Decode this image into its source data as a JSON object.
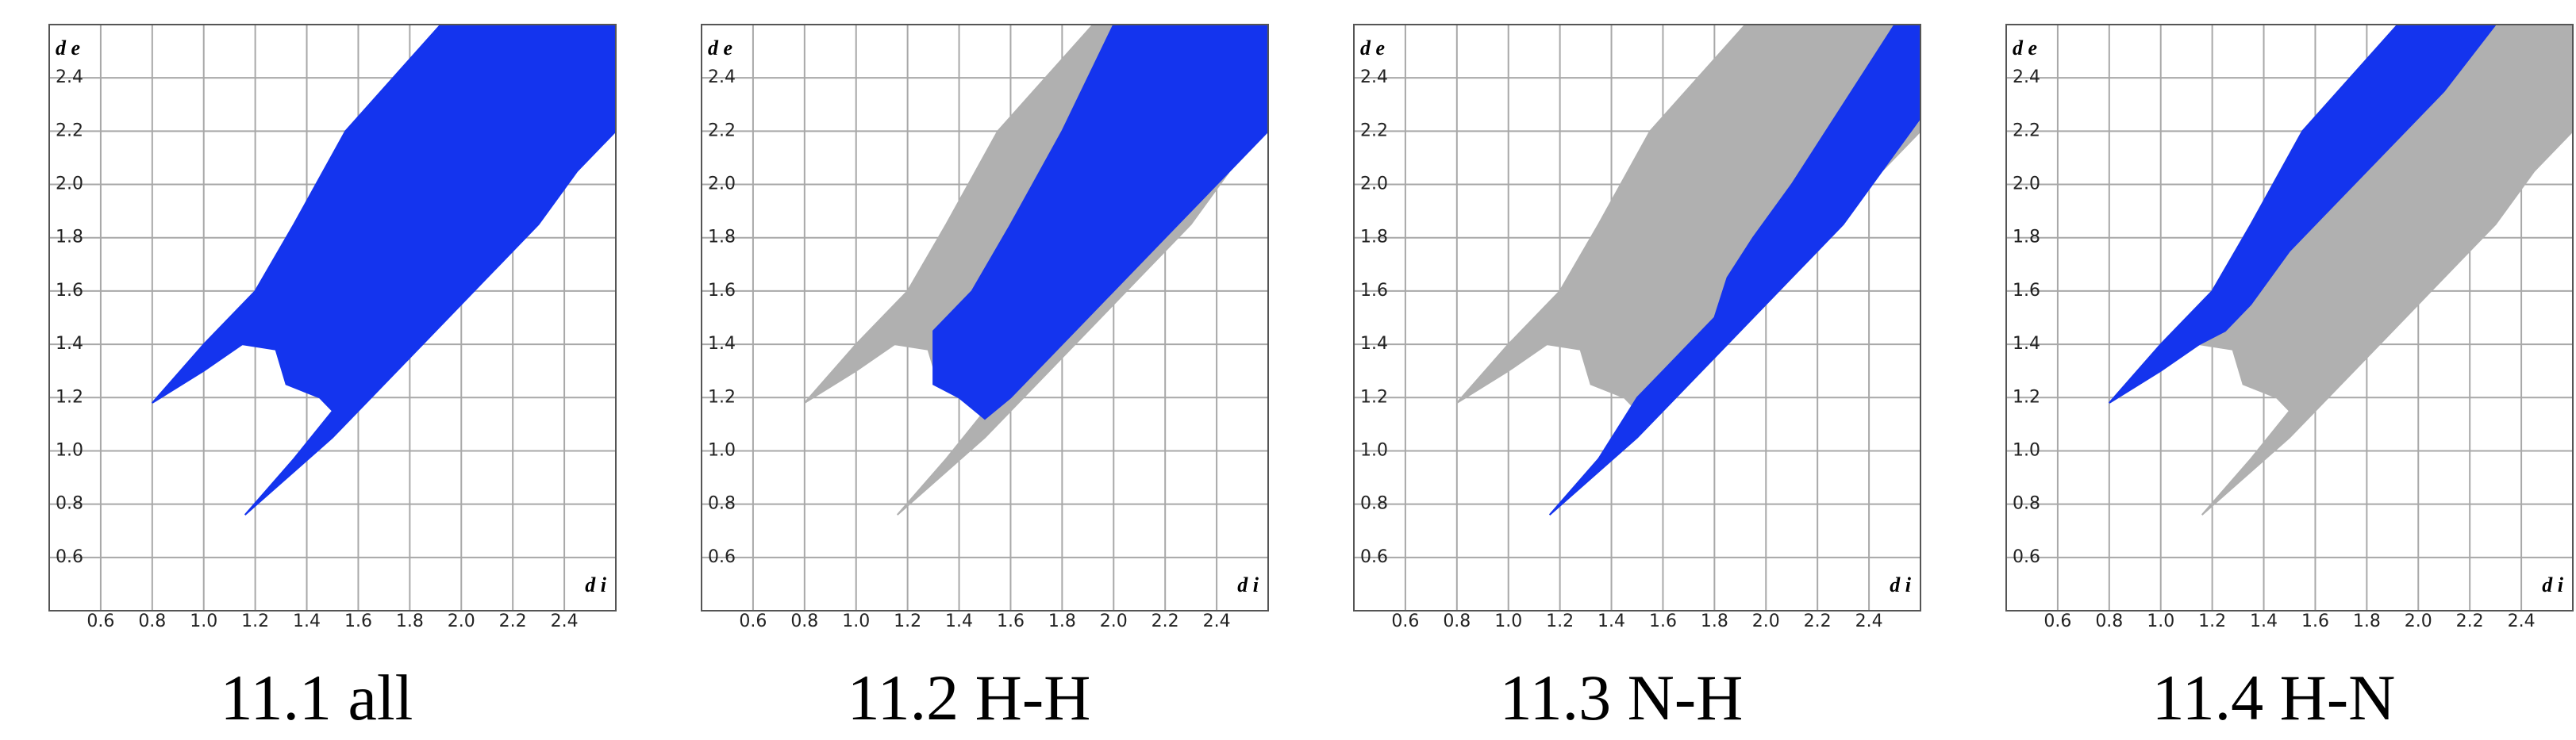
{
  "chart_data": [
    {
      "type": "fingerprint",
      "title": "11.1 all",
      "xlabel": "d i",
      "ylabel": "d e",
      "xlim": [
        0.4,
        2.6
      ],
      "ylim": [
        0.4,
        2.6
      ],
      "xticks": [
        0.6,
        0.8,
        {
          "value": 1,
          "label": "1.0"
        },
        1.2,
        1.4,
        1.6,
        1.8,
        {
          "value": 2,
          "label": "2.0"
        },
        2.2,
        2.4
      ],
      "yticks": [
        0.6,
        0.8,
        {
          "value": 1,
          "label": "1.0"
        },
        1.2,
        1.4,
        1.6,
        1.8,
        {
          "value": 2,
          "label": "2.0"
        },
        2.2,
        2.4
      ],
      "grid": true,
      "series": [
        {
          "color": "#1434ee",
          "x": [
            1.16,
            1.5,
            1.8,
            2.1,
            2.3,
            2.45,
            2.6,
            2.6,
            1.92,
            1.55,
            1.35,
            1.2,
            1.0,
            0.8,
            1.0,
            1.15,
            1.28,
            1.32,
            1.45,
            1.5,
            1.35,
            1.16
          ],
          "values": [
            0.76,
            1.05,
            1.35,
            1.65,
            1.85,
            2.05,
            2.2,
            2.6,
            2.6,
            2.2,
            1.85,
            1.6,
            1.4,
            1.18,
            1.3,
            1.4,
            1.38,
            1.25,
            1.2,
            1.15,
            0.97,
            0.76
          ]
        }
      ]
    },
    {
      "type": "fingerprint",
      "title": "11.2 H-H",
      "xlabel": "d i",
      "ylabel": "d e",
      "xlim": [
        0.4,
        2.6
      ],
      "ylim": [
        0.4,
        2.6
      ],
      "xticks": [
        0.6,
        0.8,
        {
          "value": 1,
          "label": "1.0"
        },
        1.2,
        1.4,
        1.6,
        1.8,
        {
          "value": 2,
          "label": "2.0"
        },
        2.2,
        2.4
      ],
      "yticks": [
        0.6,
        0.8,
        {
          "value": 1,
          "label": "1.0"
        },
        1.2,
        1.4,
        1.6,
        1.8,
        {
          "value": 2,
          "label": "2.0"
        },
        2.2,
        2.4
      ],
      "grid": true,
      "series": [
        {
          "color": "#b0b0b0",
          "x": [
            1.16,
            1.5,
            1.8,
            2.1,
            2.3,
            2.45,
            2.6,
            2.6,
            1.92,
            1.55,
            1.35,
            1.2,
            1.0,
            0.8,
            1.0,
            1.15,
            1.28,
            1.32,
            1.45,
            1.5,
            1.35,
            1.16
          ],
          "values": [
            0.76,
            1.05,
            1.35,
            1.65,
            1.85,
            2.05,
            2.2,
            2.6,
            2.6,
            2.2,
            1.85,
            1.6,
            1.4,
            1.18,
            1.3,
            1.4,
            1.38,
            1.25,
            1.2,
            1.15,
            0.97,
            0.76
          ]
        },
        {
          "color": "#1434ee",
          "x": [
            1.3,
            1.3,
            1.45,
            1.6,
            1.8,
            2.0,
            2.6,
            2.6,
            2.45,
            2.2,
            1.9,
            1.6,
            1.5,
            1.4
          ],
          "values": [
            1.25,
            1.45,
            1.6,
            1.85,
            2.2,
            2.6,
            2.6,
            2.2,
            2.05,
            1.8,
            1.5,
            1.2,
            1.12,
            1.2
          ]
        }
      ]
    },
    {
      "type": "fingerprint",
      "title": "11.3 N-H",
      "xlabel": "d i",
      "ylabel": "d e",
      "xlim": [
        0.4,
        2.6
      ],
      "ylim": [
        0.4,
        2.6
      ],
      "xticks": [
        0.6,
        0.8,
        {
          "value": 1,
          "label": "1.0"
        },
        1.2,
        1.4,
        1.6,
        1.8,
        {
          "value": 2,
          "label": "2.0"
        },
        2.2,
        2.4
      ],
      "yticks": [
        0.6,
        0.8,
        {
          "value": 1,
          "label": "1.0"
        },
        1.2,
        1.4,
        1.6,
        1.8,
        {
          "value": 2,
          "label": "2.0"
        },
        2.2,
        2.4
      ],
      "grid": true,
      "series": [
        {
          "color": "#b0b0b0",
          "x": [
            1.16,
            1.5,
            1.8,
            2.1,
            2.3,
            2.45,
            2.6,
            2.6,
            1.92,
            1.55,
            1.35,
            1.2,
            1.0,
            0.8,
            1.0,
            1.15,
            1.28,
            1.32,
            1.45,
            1.5,
            1.35,
            1.16
          ],
          "values": [
            0.76,
            1.05,
            1.35,
            1.65,
            1.85,
            2.05,
            2.2,
            2.6,
            2.6,
            2.2,
            1.85,
            1.6,
            1.4,
            1.18,
            1.3,
            1.4,
            1.38,
            1.25,
            1.2,
            1.15,
            0.97,
            0.76
          ]
        },
        {
          "color": "#1434ee",
          "x": [
            1.16,
            1.5,
            1.8,
            2.1,
            2.3,
            2.45,
            2.6,
            2.6,
            2.5,
            2.3,
            2.1,
            1.95,
            1.85,
            1.8,
            1.7,
            1.6,
            1.5,
            1.35
          ],
          "values": [
            0.76,
            1.05,
            1.35,
            1.65,
            1.85,
            2.05,
            2.25,
            2.6,
            2.6,
            2.3,
            2.0,
            1.8,
            1.65,
            1.5,
            1.4,
            1.3,
            1.2,
            0.97
          ]
        }
      ]
    },
    {
      "type": "fingerprint",
      "title": "11.4 H-N",
      "xlabel": "d i",
      "ylabel": "d e",
      "xlim": [
        0.4,
        2.6
      ],
      "ylim": [
        0.4,
        2.6
      ],
      "xticks": [
        0.6,
        0.8,
        {
          "value": 1,
          "label": "1.0"
        },
        1.2,
        1.4,
        1.6,
        1.8,
        {
          "value": 2,
          "label": "2.0"
        },
        2.2,
        2.4
      ],
      "yticks": [
        0.6,
        0.8,
        {
          "value": 1,
          "label": "1.0"
        },
        1.2,
        1.4,
        1.6,
        1.8,
        {
          "value": 2,
          "label": "2.0"
        },
        2.2,
        2.4
      ],
      "grid": true,
      "series": [
        {
          "color": "#b0b0b0",
          "x": [
            1.16,
            1.5,
            1.8,
            2.1,
            2.3,
            2.45,
            2.6,
            2.6,
            1.92,
            1.55,
            1.35,
            1.2,
            1.0,
            0.8,
            1.0,
            1.15,
            1.28,
            1.32,
            1.45,
            1.5,
            1.35,
            1.16
          ],
          "values": [
            0.76,
            1.05,
            1.35,
            1.65,
            1.85,
            2.05,
            2.2,
            2.6,
            2.6,
            2.2,
            1.85,
            1.6,
            1.4,
            1.18,
            1.3,
            1.4,
            1.38,
            1.25,
            1.2,
            1.15,
            0.97,
            0.76
          ]
        },
        {
          "color": "#1434ee",
          "x": [
            0.8,
            1.0,
            1.2,
            1.35,
            1.55,
            1.92,
            2.3,
            2.1,
            1.9,
            1.7,
            1.5,
            1.35,
            1.25,
            1.15,
            1.0
          ],
          "values": [
            1.18,
            1.4,
            1.6,
            1.85,
            2.2,
            2.6,
            2.6,
            2.35,
            2.15,
            1.95,
            1.75,
            1.55,
            1.45,
            1.4,
            1.3
          ]
        }
      ]
    }
  ]
}
